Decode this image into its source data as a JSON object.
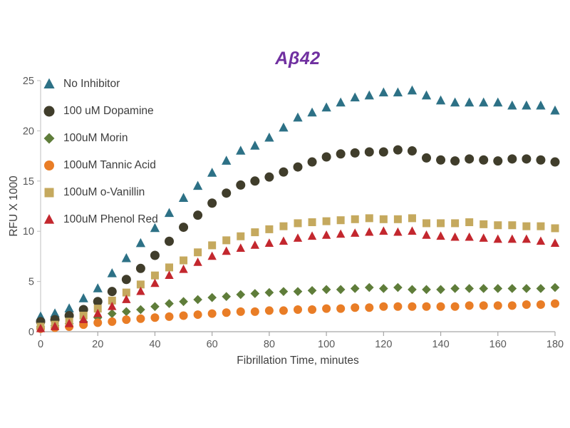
{
  "title": "Aβ42",
  "title_color": "#7030a0",
  "chart_data": {
    "type": "scatter",
    "title": "Aβ42",
    "xlabel": "Fibrillation Time, minutes",
    "ylabel": "RFU X 1000",
    "xlim": [
      0,
      180
    ],
    "ylim": [
      0,
      25
    ],
    "x_ticks": [
      0,
      20,
      40,
      60,
      80,
      100,
      120,
      140,
      160,
      180
    ],
    "y_ticks": [
      0,
      5,
      10,
      15,
      20,
      25
    ],
    "grid": false,
    "legend_position": "top-left-inside",
    "x": [
      0,
      5,
      10,
      15,
      20,
      25,
      30,
      35,
      40,
      45,
      50,
      55,
      60,
      65,
      70,
      75,
      80,
      85,
      90,
      95,
      100,
      105,
      110,
      115,
      120,
      125,
      130,
      135,
      140,
      145,
      150,
      155,
      160,
      165,
      170,
      175,
      180
    ],
    "series": [
      {
        "name": "No Inhibitor",
        "marker": "triangle",
        "color": "#2d7186",
        "values": [
          1.5,
          1.8,
          2.3,
          3.3,
          4.3,
          5.8,
          7.3,
          8.8,
          10.3,
          11.8,
          13.3,
          14.5,
          15.8,
          17.0,
          18.0,
          18.5,
          19.3,
          20.3,
          21.3,
          21.8,
          22.3,
          22.8,
          23.3,
          23.5,
          23.8,
          23.8,
          24.0,
          23.5,
          23.0,
          22.8,
          22.8,
          22.8,
          22.8,
          22.5,
          22.5,
          22.5,
          22.0
        ]
      },
      {
        "name": "100 uM Dopamine",
        "marker": "circle",
        "color": "#403d2b",
        "values": [
          1.0,
          1.2,
          1.6,
          2.2,
          3.0,
          4.0,
          5.2,
          6.3,
          7.6,
          9.0,
          10.4,
          11.6,
          12.8,
          13.8,
          14.6,
          15.0,
          15.4,
          15.9,
          16.4,
          16.9,
          17.4,
          17.7,
          17.8,
          17.9,
          17.9,
          18.1,
          18.0,
          17.3,
          17.1,
          17.0,
          17.2,
          17.1,
          17.0,
          17.2,
          17.2,
          17.1,
          16.9
        ]
      },
      {
        "name": "100uM Morin",
        "marker": "diamond",
        "color": "#5f7d3a",
        "values": [
          0.5,
          0.6,
          0.8,
          1.0,
          1.4,
          1.8,
          2.0,
          2.2,
          2.5,
          2.8,
          3.0,
          3.2,
          3.4,
          3.5,
          3.7,
          3.8,
          3.9,
          4.0,
          4.0,
          4.1,
          4.2,
          4.2,
          4.3,
          4.4,
          4.3,
          4.4,
          4.2,
          4.2,
          4.2,
          4.3,
          4.3,
          4.3,
          4.3,
          4.3,
          4.3,
          4.3,
          4.4
        ]
      },
      {
        "name": "100uM Tannic Acid",
        "marker": "circle",
        "color": "#e97d26",
        "values": [
          0.3,
          0.4,
          0.5,
          0.7,
          0.9,
          1.0,
          1.2,
          1.3,
          1.4,
          1.5,
          1.6,
          1.7,
          1.8,
          1.9,
          2.0,
          2.0,
          2.1,
          2.1,
          2.2,
          2.2,
          2.3,
          2.3,
          2.4,
          2.4,
          2.5,
          2.5,
          2.5,
          2.5,
          2.5,
          2.5,
          2.6,
          2.6,
          2.6,
          2.6,
          2.7,
          2.7,
          2.8
        ]
      },
      {
        "name": "100uM o-Vanillin",
        "marker": "square",
        "color": "#c5a95e",
        "values": [
          0.5,
          0.7,
          1.0,
          1.6,
          2.3,
          3.1,
          3.9,
          4.7,
          5.6,
          6.4,
          7.1,
          7.9,
          8.6,
          9.1,
          9.5,
          9.9,
          10.2,
          10.5,
          10.8,
          10.9,
          11.0,
          11.1,
          11.2,
          11.3,
          11.2,
          11.2,
          11.3,
          10.8,
          10.8,
          10.8,
          10.9,
          10.7,
          10.6,
          10.6,
          10.5,
          10.5,
          10.3
        ]
      },
      {
        "name": "100uM Phenol Red",
        "marker": "triangle",
        "color": "#c3272e",
        "values": [
          0.3,
          0.5,
          0.8,
          1.2,
          1.8,
          2.5,
          3.2,
          4.0,
          4.8,
          5.6,
          6.2,
          6.9,
          7.5,
          8.0,
          8.3,
          8.6,
          8.8,
          9.0,
          9.3,
          9.5,
          9.6,
          9.7,
          9.8,
          9.9,
          10.0,
          9.9,
          10.0,
          9.6,
          9.5,
          9.4,
          9.4,
          9.3,
          9.2,
          9.2,
          9.2,
          9.0,
          8.8
        ]
      }
    ]
  }
}
